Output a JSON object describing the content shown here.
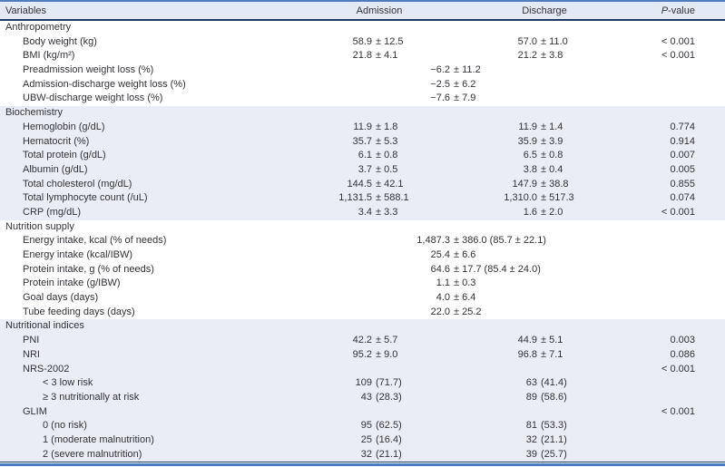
{
  "colors": {
    "accent_blue": "#4d7fc0",
    "navy_rule": "#1e3a5f",
    "header_bg": "#e4eaf5",
    "band_bg": "#eaecf6",
    "text": "#333338"
  },
  "table": {
    "header": {
      "variables": "Variables",
      "admission": "Admission",
      "discharge": "Discharge",
      "p_italic": "P",
      "p_rest": "-value"
    },
    "sections": [
      {
        "name": "Anthropometry",
        "shaded": false,
        "rows": [
          {
            "label": "Body weight (kg)",
            "indent": 1,
            "admission": "58.9 ± 12.5",
            "discharge": "57.0 ± 11.0",
            "p": "< 0.001"
          },
          {
            "label": "BMI (kg/m²)",
            "indent": 1,
            "admission": "21.8 ± 4.1",
            "discharge": "21.2 ± 3.8",
            "p": "< 0.001"
          },
          {
            "label": "Preadmission weight loss (%)",
            "indent": 1,
            "span": "−6.2 ± 11.2"
          },
          {
            "label": "Admission-discharge weight loss (%)",
            "indent": 1,
            "span": "−2.5 ± 6.2"
          },
          {
            "label": "UBW-discharge weight loss (%)",
            "indent": 1,
            "span": "−7.6 ± 7.9"
          }
        ]
      },
      {
        "name": "Biochemistry",
        "shaded": true,
        "rows": [
          {
            "label": "Hemoglobin (g/dL)",
            "indent": 1,
            "admission": "11.9 ± 1.8",
            "discharge": "11.9 ± 1.4",
            "p": "0.774"
          },
          {
            "label": "Hematocrit (%)",
            "indent": 1,
            "admission": "35.7 ± 5.3",
            "discharge": "35.9 ± 3.9",
            "p": "0.914"
          },
          {
            "label": "Total protein (g/dL)",
            "indent": 1,
            "admission": "6.1 ± 0.8",
            "discharge": "6.5 ± 0.8",
            "p": "0.007"
          },
          {
            "label": "Albumin (g/dL)",
            "indent": 1,
            "admission": "3.7 ± 0.5",
            "discharge": "3.8 ± 0.4",
            "p": "0.005"
          },
          {
            "label": "Total cholesterol (mg/dL)",
            "indent": 1,
            "admission": "144.5 ± 42.1",
            "discharge": "147.9 ± 38.8",
            "p": "0.855"
          },
          {
            "label": "Total lymphocyte count (/uL)",
            "indent": 1,
            "admission": "1,131.5 ± 588.1",
            "discharge": "1,310.0 ± 517.3",
            "p": "0.074"
          },
          {
            "label": "CRP (mg/dL)",
            "indent": 1,
            "admission": "3.4 ± 3.3",
            "discharge": "1.6 ± 2.0",
            "p": "< 0.001"
          }
        ]
      },
      {
        "name": "Nutrition supply",
        "shaded": false,
        "rows": [
          {
            "label": "Energy intake, kcal (% of needs)",
            "indent": 1,
            "span": "1,487.3 ± 386.0 (85.7 ± 22.1)"
          },
          {
            "label": "Energy intake (kcal/IBW)",
            "indent": 1,
            "span": "25.4 ± 6.6"
          },
          {
            "label": "Protein intake, g (% of needs)",
            "indent": 1,
            "span": "64.6 ± 17.7 (85.4 ± 24.0)"
          },
          {
            "label": "Protein intake (g/IBW)",
            "indent": 1,
            "span": "1.1 ± 0.3"
          },
          {
            "label": "Goal days (days)",
            "indent": 1,
            "span": "4.0 ± 6.4"
          },
          {
            "label": "Tube feeding days (days)",
            "indent": 1,
            "span": "22.0 ± 25.2"
          }
        ]
      },
      {
        "name": "Nutritional indices",
        "shaded": true,
        "rows": [
          {
            "label": "PNI",
            "indent": 1,
            "admission": "42.2 ± 5.7",
            "discharge": "44.9 ± 5.1",
            "p": "0.003"
          },
          {
            "label": "NRI",
            "indent": 1,
            "admission": "95.2 ± 9.0",
            "discharge": "96.8 ± 7.1",
            "p": "0.086"
          },
          {
            "label": "NRS-2002",
            "indent": 1,
            "p": "< 0.001"
          },
          {
            "label": "< 3 low risk",
            "indent": 2,
            "admission": "109 (71.7)",
            "discharge": "63 (41.4)"
          },
          {
            "label": "≥ 3 nutritionally at risk",
            "indent": 2,
            "admission": "43 (28.3)",
            "discharge": "89 (58.6)"
          },
          {
            "label": "GLIM",
            "indent": 1,
            "p": "< 0.001"
          },
          {
            "label": "0 (no risk)",
            "indent": 2,
            "admission": "95 (62.5)",
            "discharge": "81 (53.3)"
          },
          {
            "label": "1 (moderate malnutrition)",
            "indent": 2,
            "admission": "25 (16.4)",
            "discharge": "32 (21.1)"
          },
          {
            "label": "2 (severe malnutrition)",
            "indent": 2,
            "admission": "32 (21.1)",
            "discharge": "39 (25.7)"
          }
        ]
      }
    ]
  }
}
